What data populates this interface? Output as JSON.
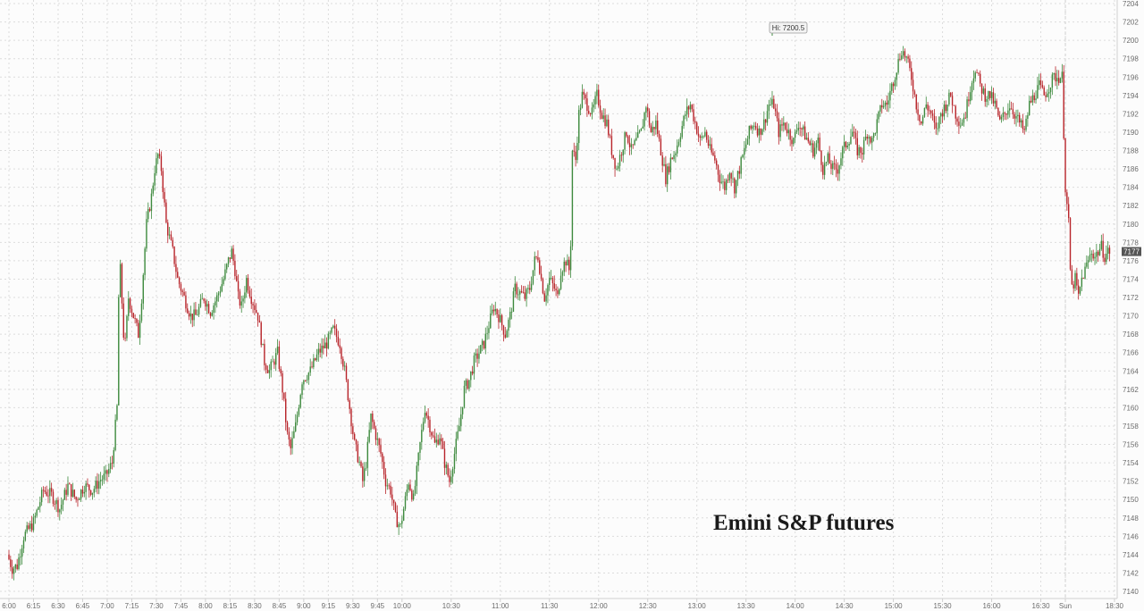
{
  "chart_data": {
    "type": "candlestick",
    "title": "Emini S&P futures",
    "xlabel": "",
    "ylabel": "",
    "ylim": [
      7139,
      7205
    ],
    "y_ticks": [
      7140,
      7142,
      7144,
      7146,
      7148,
      7150,
      7152,
      7154,
      7156,
      7158,
      7160,
      7162,
      7164,
      7166,
      7168,
      7170,
      7172,
      7174,
      7176,
      7178,
      7180,
      7182,
      7184,
      7186,
      7188,
      7190,
      7192,
      7194,
      7196,
      7198,
      7200,
      7202,
      7204
    ],
    "x_tick_labels": [
      "6:00",
      "6:15",
      "6:30",
      "6:45",
      "7:00",
      "7:15",
      "7:30",
      "7:45",
      "8:00",
      "8:15",
      "8:30",
      "8:45",
      "9:00",
      "9:15",
      "9:30",
      "9:45",
      "10:00",
      "10:30",
      "11:00",
      "11:30",
      "12:00",
      "12:30",
      "13:00",
      "13:30",
      "14:00",
      "14:30",
      "15:00",
      "15:30",
      "16:00",
      "16:30",
      "Sun",
      "18:30"
    ],
    "x_tick_times": [
      0,
      15,
      30,
      45,
      60,
      75,
      90,
      105,
      120,
      135,
      150,
      165,
      180,
      195,
      210,
      225,
      240,
      270,
      300,
      330,
      360,
      390,
      420,
      450,
      480,
      510,
      540,
      570,
      600,
      630,
      645,
      675
    ],
    "session_break_time": 645,
    "grid": true,
    "hi_label": "Hi: 7200.5",
    "hi_value": 7200.5,
    "hi_time": 466,
    "last_value": 7177,
    "last_label": "7177",
    "up_color": "#3e8a3e",
    "down_color": "#b8242a",
    "path": [
      {
        "t": 0,
        "p": 7144
      },
      {
        "t": 3,
        "p": 7142.5
      },
      {
        "t": 6,
        "p": 7142.8
      },
      {
        "t": 10,
        "p": 7146
      },
      {
        "t": 16,
        "p": 7147.5
      },
      {
        "t": 22,
        "p": 7151
      },
      {
        "t": 27,
        "p": 7150.5
      },
      {
        "t": 32,
        "p": 7149
      },
      {
        "t": 37,
        "p": 7151.5
      },
      {
        "t": 42,
        "p": 7150
      },
      {
        "t": 47,
        "p": 7151.5
      },
      {
        "t": 52,
        "p": 7151
      },
      {
        "t": 57,
        "p": 7152.2
      },
      {
        "t": 60,
        "p": 7152.5
      },
      {
        "t": 64,
        "p": 7154
      },
      {
        "t": 67,
        "p": 7160
      },
      {
        "t": 68,
        "p": 7172
      },
      {
        "t": 69,
        "p": 7175
      },
      {
        "t": 71,
        "p": 7168
      },
      {
        "t": 72,
        "p": 7167
      },
      {
        "t": 74,
        "p": 7172
      },
      {
        "t": 77,
        "p": 7170
      },
      {
        "t": 80,
        "p": 7168
      },
      {
        "t": 82,
        "p": 7172
      },
      {
        "t": 85,
        "p": 7180
      },
      {
        "t": 88,
        "p": 7183
      },
      {
        "t": 90,
        "p": 7186
      },
      {
        "t": 92,
        "p": 7187.5
      },
      {
        "t": 94,
        "p": 7186
      },
      {
        "t": 97,
        "p": 7180
      },
      {
        "t": 101,
        "p": 7177
      },
      {
        "t": 104,
        "p": 7174
      },
      {
        "t": 108,
        "p": 7172
      },
      {
        "t": 112,
        "p": 7170
      },
      {
        "t": 115,
        "p": 7170
      },
      {
        "t": 120,
        "p": 7172
      },
      {
        "t": 124,
        "p": 7170.5
      },
      {
        "t": 128,
        "p": 7172
      },
      {
        "t": 132,
        "p": 7174
      },
      {
        "t": 135,
        "p": 7176
      },
      {
        "t": 137,
        "p": 7177
      },
      {
        "t": 139,
        "p": 7175
      },
      {
        "t": 141,
        "p": 7172
      },
      {
        "t": 143,
        "p": 7171
      },
      {
        "t": 146,
        "p": 7174
      },
      {
        "t": 149,
        "p": 7172
      },
      {
        "t": 153,
        "p": 7170
      },
      {
        "t": 157,
        "p": 7165
      },
      {
        "t": 160,
        "p": 7164
      },
      {
        "t": 165,
        "p": 7166
      },
      {
        "t": 168,
        "p": 7162
      },
      {
        "t": 171,
        "p": 7157
      },
      {
        "t": 173,
        "p": 7155.5
      },
      {
        "t": 176,
        "p": 7158
      },
      {
        "t": 180,
        "p": 7163
      },
      {
        "t": 185,
        "p": 7164
      },
      {
        "t": 190,
        "p": 7166
      },
      {
        "t": 195,
        "p": 7167
      },
      {
        "t": 199,
        "p": 7168.5
      },
      {
        "t": 203,
        "p": 7167
      },
      {
        "t": 206,
        "p": 7164
      },
      {
        "t": 209,
        "p": 7160
      },
      {
        "t": 212,
        "p": 7156
      },
      {
        "t": 215,
        "p": 7154
      },
      {
        "t": 217,
        "p": 7152
      },
      {
        "t": 219,
        "p": 7154
      },
      {
        "t": 222,
        "p": 7159
      },
      {
        "t": 225,
        "p": 7157
      },
      {
        "t": 228,
        "p": 7155
      },
      {
        "t": 231,
        "p": 7152
      },
      {
        "t": 234,
        "p": 7151
      },
      {
        "t": 237,
        "p": 7148
      },
      {
        "t": 240,
        "p": 7147
      },
      {
        "t": 242,
        "p": 7149
      },
      {
        "t": 245,
        "p": 7152
      },
      {
        "t": 248,
        "p": 7150
      },
      {
        "t": 252,
        "p": 7156
      },
      {
        "t": 255,
        "p": 7160
      },
      {
        "t": 258,
        "p": 7158
      },
      {
        "t": 261,
        "p": 7156
      },
      {
        "t": 264,
        "p": 7157
      },
      {
        "t": 267,
        "p": 7154
      },
      {
        "t": 270,
        "p": 7152
      },
      {
        "t": 273,
        "p": 7155
      },
      {
        "t": 276,
        "p": 7158
      },
      {
        "t": 279,
        "p": 7162
      },
      {
        "t": 282,
        "p": 7163
      },
      {
        "t": 285,
        "p": 7165
      },
      {
        "t": 288,
        "p": 7166
      },
      {
        "t": 291,
        "p": 7167
      },
      {
        "t": 294,
        "p": 7169
      },
      {
        "t": 297,
        "p": 7171
      },
      {
        "t": 300,
        "p": 7170
      },
      {
        "t": 304,
        "p": 7168
      },
      {
        "t": 307,
        "p": 7170
      },
      {
        "t": 310,
        "p": 7173
      },
      {
        "t": 313,
        "p": 7172.5
      },
      {
        "t": 316,
        "p": 7172
      },
      {
        "t": 319,
        "p": 7173
      },
      {
        "t": 322,
        "p": 7176
      },
      {
        "t": 324,
        "p": 7176.5
      },
      {
        "t": 326,
        "p": 7174
      },
      {
        "t": 328,
        "p": 7172
      },
      {
        "t": 331,
        "p": 7174
      },
      {
        "t": 334,
        "p": 7173
      },
      {
        "t": 336,
        "p": 7172
      },
      {
        "t": 338,
        "p": 7175
      },
      {
        "t": 341,
        "p": 7176
      },
      {
        "t": 343,
        "p": 7175
      },
      {
        "t": 344,
        "p": 7178
      },
      {
        "t": 345,
        "p": 7188
      },
      {
        "t": 347,
        "p": 7187
      },
      {
        "t": 349,
        "p": 7192
      },
      {
        "t": 351,
        "p": 7194
      },
      {
        "t": 354,
        "p": 7193
      },
      {
        "t": 357,
        "p": 7192
      },
      {
        "t": 360,
        "p": 7194
      },
      {
        "t": 363,
        "p": 7192
      },
      {
        "t": 366,
        "p": 7191
      },
      {
        "t": 369,
        "p": 7188
      },
      {
        "t": 372,
        "p": 7186
      },
      {
        "t": 375,
        "p": 7188
      },
      {
        "t": 378,
        "p": 7190
      },
      {
        "t": 381,
        "p": 7188
      },
      {
        "t": 384,
        "p": 7189
      },
      {
        "t": 387,
        "p": 7190
      },
      {
        "t": 390,
        "p": 7193
      },
      {
        "t": 393,
        "p": 7190
      },
      {
        "t": 396,
        "p": 7191
      },
      {
        "t": 399,
        "p": 7188
      },
      {
        "t": 402,
        "p": 7185
      },
      {
        "t": 405,
        "p": 7187
      },
      {
        "t": 408,
        "p": 7188
      },
      {
        "t": 411,
        "p": 7190
      },
      {
        "t": 414,
        "p": 7192
      },
      {
        "t": 417,
        "p": 7193
      },
      {
        "t": 420,
        "p": 7191
      },
      {
        "t": 423,
        "p": 7189
      },
      {
        "t": 426,
        "p": 7190
      },
      {
        "t": 429,
        "p": 7188
      },
      {
        "t": 432,
        "p": 7187
      },
      {
        "t": 435,
        "p": 7185
      },
      {
        "t": 438,
        "p": 7184
      },
      {
        "t": 441,
        "p": 7186
      },
      {
        "t": 444,
        "p": 7184
      },
      {
        "t": 447,
        "p": 7186
      },
      {
        "t": 450,
        "p": 7188
      },
      {
        "t": 453,
        "p": 7190
      },
      {
        "t": 456,
        "p": 7191
      },
      {
        "t": 459,
        "p": 7190
      },
      {
        "t": 462,
        "p": 7191
      },
      {
        "t": 465,
        "p": 7193
      },
      {
        "t": 468,
        "p": 7193
      },
      {
        "t": 471,
        "p": 7190
      },
      {
        "t": 474,
        "p": 7191
      },
      {
        "t": 477,
        "p": 7190
      },
      {
        "t": 480,
        "p": 7189
      },
      {
        "t": 483,
        "p": 7191
      },
      {
        "t": 486,
        "p": 7190
      },
      {
        "t": 489,
        "p": 7189
      },
      {
        "t": 492,
        "p": 7188
      },
      {
        "t": 495,
        "p": 7189
      },
      {
        "t": 498,
        "p": 7186
      },
      {
        "t": 501,
        "p": 7187
      },
      {
        "t": 504,
        "p": 7186
      },
      {
        "t": 507,
        "p": 7186
      },
      {
        "t": 510,
        "p": 7188
      },
      {
        "t": 513,
        "p": 7189
      },
      {
        "t": 516,
        "p": 7190
      },
      {
        "t": 519,
        "p": 7188
      },
      {
        "t": 522,
        "p": 7188
      },
      {
        "t": 525,
        "p": 7190
      },
      {
        "t": 528,
        "p": 7189
      },
      {
        "t": 531,
        "p": 7191
      },
      {
        "t": 534,
        "p": 7193
      },
      {
        "t": 537,
        "p": 7193
      },
      {
        "t": 540,
        "p": 7195
      },
      {
        "t": 543,
        "p": 7197
      },
      {
        "t": 546,
        "p": 7199
      },
      {
        "t": 549,
        "p": 7198
      },
      {
        "t": 552,
        "p": 7196
      },
      {
        "t": 555,
        "p": 7193
      },
      {
        "t": 558,
        "p": 7191
      },
      {
        "t": 561,
        "p": 7193
      },
      {
        "t": 564,
        "p": 7192
      },
      {
        "t": 567,
        "p": 7190
      },
      {
        "t": 570,
        "p": 7192
      },
      {
        "t": 573,
        "p": 7193
      },
      {
        "t": 576,
        "p": 7194
      },
      {
        "t": 579,
        "p": 7192
      },
      {
        "t": 582,
        "p": 7191
      },
      {
        "t": 585,
        "p": 7192
      },
      {
        "t": 588,
        "p": 7195
      },
      {
        "t": 591,
        "p": 7197
      },
      {
        "t": 594,
        "p": 7195
      },
      {
        "t": 597,
        "p": 7194
      },
      {
        "t": 600,
        "p": 7194
      },
      {
        "t": 603,
        "p": 7193
      },
      {
        "t": 606,
        "p": 7191
      },
      {
        "t": 609,
        "p": 7192
      },
      {
        "t": 612,
        "p": 7193
      },
      {
        "t": 615,
        "p": 7192
      },
      {
        "t": 618,
        "p": 7191
      },
      {
        "t": 621,
        "p": 7190
      },
      {
        "t": 624,
        "p": 7193
      },
      {
        "t": 627,
        "p": 7194
      },
      {
        "t": 630,
        "p": 7195
      },
      {
        "t": 633,
        "p": 7194
      },
      {
        "t": 636,
        "p": 7195
      },
      {
        "t": 639,
        "p": 7196
      },
      {
        "t": 642,
        "p": 7196
      },
      {
        "t": 644,
        "p": 7196
      },
      {
        "t": 645,
        "p": 7190
      },
      {
        "t": 646,
        "p": 7184
      },
      {
        "t": 647,
        "p": 7182
      },
      {
        "t": 648,
        "p": 7180
      },
      {
        "t": 649,
        "p": 7175
      },
      {
        "t": 650,
        "p": 7173
      },
      {
        "t": 652,
        "p": 7174
      },
      {
        "t": 654,
        "p": 7172
      },
      {
        "t": 656,
        "p": 7174
      },
      {
        "t": 658,
        "p": 7175
      },
      {
        "t": 660,
        "p": 7176
      },
      {
        "t": 662,
        "p": 7177
      },
      {
        "t": 664,
        "p": 7176.5
      },
      {
        "t": 666,
        "p": 7177
      },
      {
        "t": 668,
        "p": 7177.5
      },
      {
        "t": 670,
        "p": 7176.5
      },
      {
        "t": 672,
        "p": 7177
      }
    ]
  }
}
